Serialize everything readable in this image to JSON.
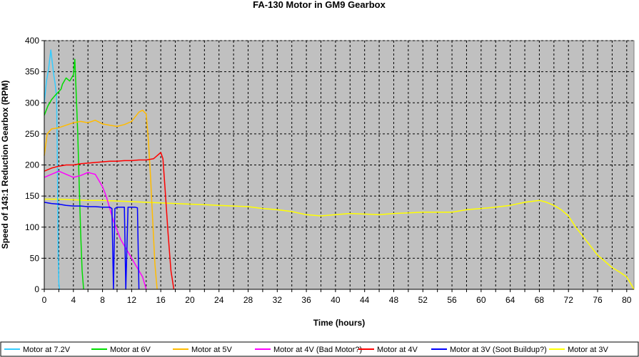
{
  "chart_data": {
    "type": "line",
    "title": "FA-130 Motor in GM9 Gearbox",
    "xlabel": "Time (hours)",
    "ylabel": "Speed of 143:1 Reduction Gearbox (RPM)",
    "xlim": [
      0,
      81
    ],
    "ylim": [
      0,
      400
    ],
    "xticks": [
      0,
      4,
      8,
      12,
      16,
      20,
      24,
      28,
      32,
      36,
      40,
      44,
      48,
      52,
      56,
      60,
      64,
      68,
      72,
      76,
      80
    ],
    "yticks": [
      0,
      50,
      100,
      150,
      200,
      250,
      300,
      350,
      400
    ],
    "grid": true,
    "legend_position": "bottom",
    "series": [
      {
        "name": "Motor at 7.2V",
        "color": "#33CCFF",
        "x": [
          0,
          0.3,
          0.6,
          0.9,
          1.1,
          1.3,
          1.5,
          1.7,
          1.8,
          1.9,
          2.0,
          2.1
        ],
        "y": [
          300,
          335,
          355,
          385,
          365,
          345,
          330,
          310,
          200,
          60,
          10,
          0
        ]
      },
      {
        "name": "Motor at 6V",
        "color": "#00DD00",
        "x": [
          0,
          0.5,
          1.0,
          1.5,
          2.0,
          2.3,
          2.5,
          3.0,
          3.5,
          4.0,
          4.2,
          4.4,
          4.6,
          4.8,
          5.0,
          5.2,
          5.4
        ],
        "y": [
          280,
          295,
          305,
          312,
          318,
          322,
          330,
          340,
          335,
          345,
          370,
          310,
          250,
          170,
          90,
          30,
          0
        ]
      },
      {
        "name": "Motor at 5V",
        "color": "#FFBB00",
        "x": [
          0,
          0.4,
          1,
          2,
          3,
          4,
          5,
          6,
          7,
          8,
          9,
          10,
          11,
          12,
          13,
          13.5,
          14,
          14.3,
          14.6,
          14.9,
          15.2,
          15.5
        ],
        "y": [
          215,
          250,
          258,
          260,
          264,
          268,
          270,
          268,
          272,
          266,
          264,
          262,
          265,
          270,
          285,
          288,
          282,
          240,
          180,
          110,
          40,
          0
        ]
      },
      {
        "name": "Motor at 4V (Bad Motor?)",
        "color": "#FF00FF",
        "x": [
          0,
          1,
          2,
          3,
          4,
          5,
          6,
          7,
          7.5,
          8,
          8.5,
          9,
          9.5,
          10,
          10.5,
          11,
          11.5,
          12,
          12.5,
          13,
          13.5,
          14
        ],
        "y": [
          180,
          185,
          190,
          185,
          180,
          183,
          188,
          185,
          175,
          165,
          150,
          130,
          110,
          95,
          80,
          70,
          60,
          50,
          40,
          30,
          20,
          0
        ]
      },
      {
        "name": "Motor at 4V",
        "color": "#FF0000",
        "x": [
          0,
          1,
          2,
          3,
          4,
          5,
          6,
          7,
          8,
          9,
          10,
          11,
          12,
          13,
          14,
          15,
          15.5,
          16,
          16.3,
          16.6,
          17,
          17.4,
          17.8
        ],
        "y": [
          190,
          195,
          198,
          200,
          200,
          202,
          203,
          204,
          205,
          206,
          206,
          207,
          207,
          208,
          208,
          210,
          215,
          220,
          210,
          160,
          90,
          30,
          0
        ]
      },
      {
        "name": "Motor at 3V (Soot Buildup?)",
        "color": "#0000FF",
        "x": [
          0,
          1,
          2,
          3,
          4,
          5,
          6,
          7,
          8,
          9,
          9.3,
          9.5,
          9.7,
          10,
          10.5,
          11,
          11.2,
          11.5,
          12,
          12.5,
          12.8,
          13.0
        ],
        "y": [
          140,
          138,
          137,
          135,
          134,
          134,
          133,
          133,
          132,
          132,
          130,
          0,
          130,
          132,
          132,
          132,
          0,
          132,
          132,
          132,
          131,
          0
        ]
      },
      {
        "name": "Motor at 3V",
        "color": "#FFFF00",
        "x": [
          0,
          2,
          4,
          6,
          8,
          10,
          12,
          14,
          16,
          18,
          20,
          22,
          24,
          26,
          28,
          30,
          32,
          34,
          36,
          38,
          40,
          42,
          44,
          46,
          48,
          50,
          52,
          54,
          56,
          58,
          60,
          62,
          64,
          66,
          68,
          69,
          70,
          71,
          72,
          73,
          74,
          75,
          76,
          77,
          78,
          79,
          80,
          80.5,
          81
        ],
        "y": [
          145,
          145,
          144,
          143,
          143,
          142,
          141,
          140,
          139,
          138,
          137,
          136,
          135,
          134,
          133,
          130,
          128,
          125,
          120,
          118,
          120,
          122,
          121,
          120,
          122,
          123,
          124,
          124,
          124,
          128,
          130,
          132,
          135,
          140,
          143,
          140,
          135,
          128,
          118,
          100,
          85,
          70,
          55,
          45,
          35,
          28,
          20,
          10,
          0
        ]
      }
    ]
  }
}
